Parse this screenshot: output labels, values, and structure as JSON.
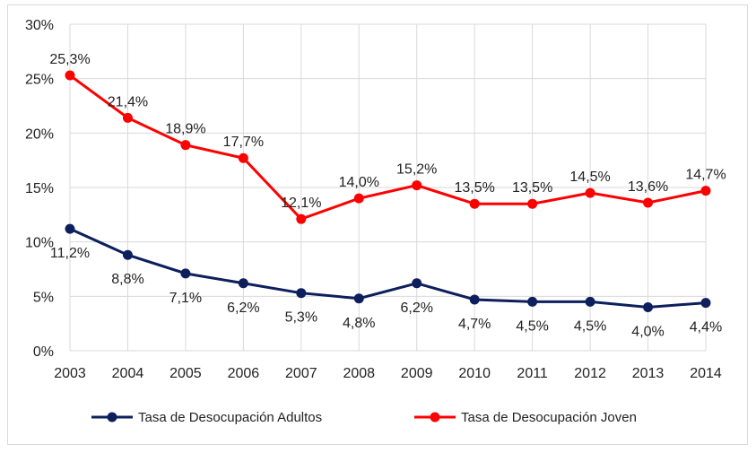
{
  "chart_data": {
    "type": "line",
    "title": "",
    "xlabel": "",
    "ylabel": "",
    "categories": [
      "2003",
      "2004",
      "2005",
      "2006",
      "2007",
      "2008",
      "2009",
      "2010",
      "2011",
      "2012",
      "2013",
      "2014"
    ],
    "ylim": [
      0,
      30
    ],
    "yticks": [
      "0%",
      "5%",
      "10%",
      "15%",
      "20%",
      "25%",
      "30%"
    ],
    "grid": true,
    "legend_position": "bottom",
    "series": [
      {
        "name": "Tasa de Desocupación Adultos",
        "color": "#0d1f5c",
        "values": [
          11.2,
          8.8,
          7.1,
          6.2,
          5.3,
          4.8,
          6.2,
          4.7,
          4.5,
          4.5,
          4.0,
          4.4
        ],
        "labels": [
          "11,2%",
          "8,8%",
          "7,1%",
          "6,2%",
          "5,3%",
          "4,8%",
          "6,2%",
          "4,7%",
          "4,5%",
          "4,5%",
          "4,0%",
          "4,4%"
        ]
      },
      {
        "name": "Tasa de Desocupación Joven",
        "color": "#ff0000",
        "values": [
          25.3,
          21.4,
          18.9,
          17.7,
          12.1,
          14.0,
          15.2,
          13.5,
          13.5,
          14.5,
          13.6,
          14.7
        ],
        "labels": [
          "25,3%",
          "21,4%",
          "18,9%",
          "17,7%",
          "12,1%",
          "14,0%",
          "15,2%",
          "13,5%",
          "13,5%",
          "14,5%",
          "13,6%",
          "14,7%"
        ]
      }
    ]
  }
}
